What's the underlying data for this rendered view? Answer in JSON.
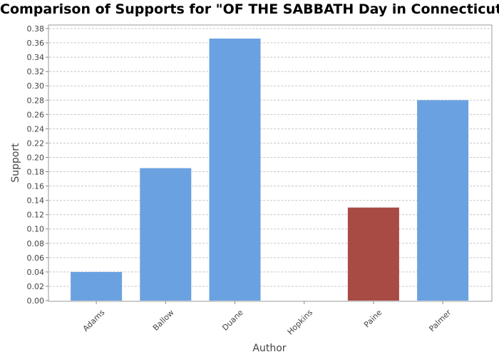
{
  "chart_data": {
    "type": "bar",
    "title": "Comparison of Supports for \"OF THE SABBATH Day in Connecticut\"",
    "xlabel": "Author",
    "ylabel": "Support",
    "categories": [
      "Adams",
      "Ballow",
      "Duane",
      "Hopkins",
      "Paine",
      "Palmer"
    ],
    "values": [
      0.04,
      0.185,
      0.366,
      0.0,
      0.13,
      0.28
    ],
    "ylim": [
      0,
      0.38
    ],
    "yticks": [
      "0.00",
      "0.02",
      "0.04",
      "0.06",
      "0.08",
      "0.10",
      "0.12",
      "0.14",
      "0.16",
      "0.18",
      "0.20",
      "0.22",
      "0.24",
      "0.26",
      "0.28",
      "0.30",
      "0.32",
      "0.34",
      "0.36",
      "0.38"
    ],
    "highlight_category": "Paine",
    "colors": {
      "default": "#6aa1e0",
      "highlight": "#a84b45",
      "grid": "#c8c8c8"
    },
    "grid": true,
    "legend": "none"
  }
}
